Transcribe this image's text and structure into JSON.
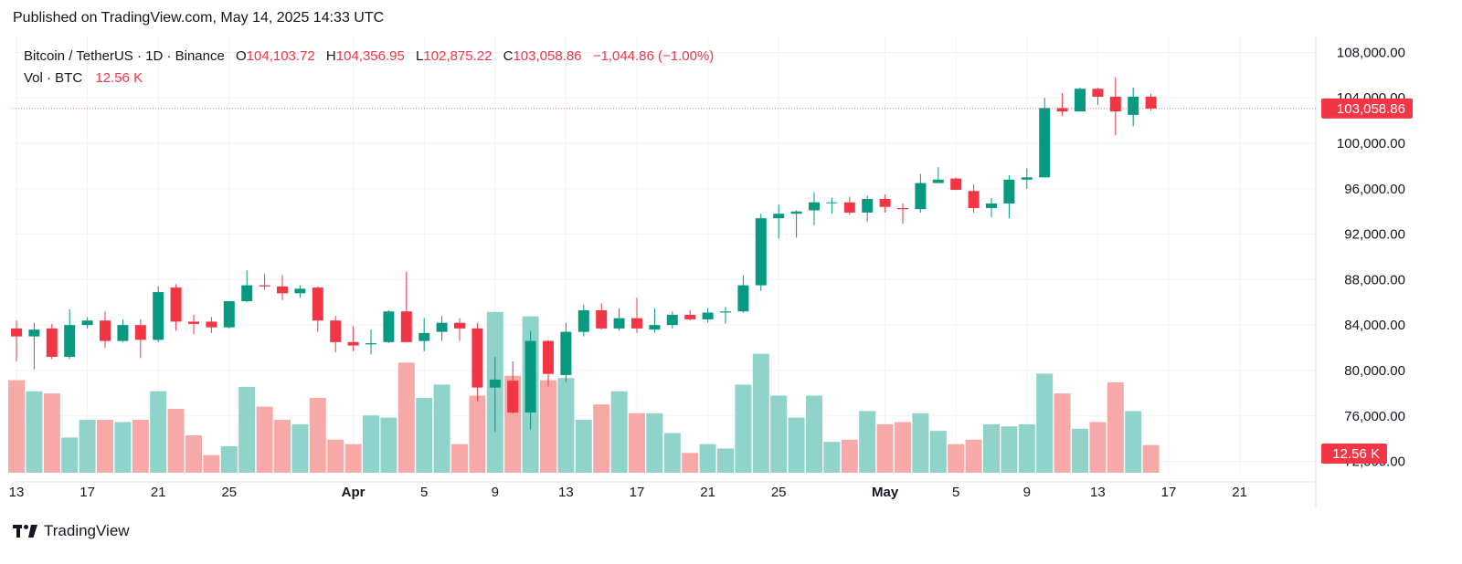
{
  "header": {
    "published": "Published on TradingView.com, May 14, 2025 14:33 UTC"
  },
  "legend": {
    "symbol": "Bitcoin / TetherUS · 1D · Binance",
    "o_label": "O",
    "o_value": "104,103.72",
    "h_label": "H",
    "h_value": "104,356.95",
    "l_label": "L",
    "l_value": "102,875.22",
    "c_label": "C",
    "c_value": "103,058.86",
    "change": "−1,044.86 (−1.00%)",
    "vol_label": "Vol · BTC",
    "vol_value": "12.56 K"
  },
  "footer": {
    "brand": "TradingView"
  },
  "colors": {
    "up": "#089981",
    "down": "#f23645",
    "vol_up": "#8fd3ca",
    "vol_down": "#f7a9a7",
    "grid": "#f0f3fa",
    "text": "#131722"
  },
  "chart_data": {
    "type": "candlestick",
    "title": "",
    "ylim": [
      71000,
      109400
    ],
    "y_ticks": [
      72000,
      76000,
      80000,
      84000,
      88000,
      92000,
      96000,
      100000,
      104000,
      108000
    ],
    "y_tick_labels": [
      "72,000.00",
      "76,000.00",
      "80,000.00",
      "84,000.00",
      "88,000.00",
      "92,000.00",
      "96,000.00",
      "100,000.00",
      "104,000.00",
      "108,000.00"
    ],
    "x_labels": [
      {
        "label": "13",
        "day": 0
      },
      {
        "label": "17",
        "day": 4
      },
      {
        "label": "21",
        "day": 8
      },
      {
        "label": "25",
        "day": 12
      },
      {
        "label": "Apr",
        "day": 19
      },
      {
        "label": "5",
        "day": 23
      },
      {
        "label": "9",
        "day": 27
      },
      {
        "label": "13",
        "day": 31
      },
      {
        "label": "17",
        "day": 35
      },
      {
        "label": "21",
        "day": 39
      },
      {
        "label": "25",
        "day": 43
      },
      {
        "label": "May",
        "day": 49
      },
      {
        "label": "5",
        "day": 53
      },
      {
        "label": "9",
        "day": 57
      },
      {
        "label": "13",
        "day": 61
      },
      {
        "label": "17",
        "day": 65
      },
      {
        "label": "21",
        "day": 69
      }
    ],
    "last_price": 103058.86,
    "last_price_label": "103,058.86",
    "last_volume_label": "12.56 K",
    "volume_max": 58000,
    "series": [
      {
        "date": "Mar 13",
        "o": 83700,
        "h": 84400,
        "l": 80800,
        "c": 83000,
        "v": 42000
      },
      {
        "date": "Mar 14",
        "o": 83000,
        "h": 84200,
        "l": 80100,
        "c": 83600,
        "v": 37000
      },
      {
        "date": "Mar 15",
        "o": 83700,
        "h": 84100,
        "l": 81000,
        "c": 81200,
        "v": 36000
      },
      {
        "date": "Mar 16",
        "o": 81200,
        "h": 85400,
        "l": 81000,
        "c": 84000,
        "v": 16000
      },
      {
        "date": "Mar 17",
        "o": 84000,
        "h": 84700,
        "l": 83700,
        "c": 84400,
        "v": 24000
      },
      {
        "date": "Mar 18",
        "o": 84400,
        "h": 85200,
        "l": 82000,
        "c": 82600,
        "v": 24000
      },
      {
        "date": "Mar 19",
        "o": 82600,
        "h": 84500,
        "l": 82500,
        "c": 84000,
        "v": 23000
      },
      {
        "date": "Mar 20",
        "o": 84000,
        "h": 84500,
        "l": 81100,
        "c": 82700,
        "v": 24000
      },
      {
        "date": "Mar 21",
        "o": 82700,
        "h": 87400,
        "l": 82500,
        "c": 86900,
        "v": 37000
      },
      {
        "date": "Mar 22",
        "o": 87300,
        "h": 87600,
        "l": 83500,
        "c": 84300,
        "v": 29000
      },
      {
        "date": "Mar 23",
        "o": 84300,
        "h": 84900,
        "l": 83200,
        "c": 84100,
        "v": 17000
      },
      {
        "date": "Mar 24",
        "o": 84300,
        "h": 84700,
        "l": 83300,
        "c": 83800,
        "v": 8000
      },
      {
        "date": "Mar 25",
        "o": 83800,
        "h": 86100,
        "l": 83700,
        "c": 86100,
        "v": 12000
      },
      {
        "date": "Mar 26",
        "o": 86100,
        "h": 88800,
        "l": 86000,
        "c": 87500,
        "v": 39000
      },
      {
        "date": "Mar 27",
        "o": 87500,
        "h": 88500,
        "l": 87100,
        "c": 87400,
        "v": 30000
      },
      {
        "date": "Mar 28",
        "o": 87400,
        "h": 88400,
        "l": 86200,
        "c": 86800,
        "v": 24000
      },
      {
        "date": "Mar 29",
        "o": 86800,
        "h": 87500,
        "l": 86400,
        "c": 87200,
        "v": 22000
      },
      {
        "date": "Mar 30",
        "o": 87300,
        "h": 87400,
        "l": 83400,
        "c": 84400,
        "v": 34000
      },
      {
        "date": "Mar 31",
        "o": 84400,
        "h": 84800,
        "l": 81600,
        "c": 82500,
        "v": 15000
      },
      {
        "date": "Apr 1",
        "o": 82500,
        "h": 83900,
        "l": 81700,
        "c": 82200,
        "v": 13000
      },
      {
        "date": "Apr 2",
        "o": 82300,
        "h": 83600,
        "l": 81400,
        "c": 82400,
        "v": 26000
      },
      {
        "date": "Apr 3",
        "o": 82500,
        "h": 85300,
        "l": 82400,
        "c": 85200,
        "v": 25000
      },
      {
        "date": "Apr 4",
        "o": 85200,
        "h": 88700,
        "l": 82500,
        "c": 82500,
        "v": 50000
      },
      {
        "date": "Apr 5",
        "o": 82600,
        "h": 84600,
        "l": 81700,
        "c": 83300,
        "v": 34000
      },
      {
        "date": "Apr 6",
        "o": 83400,
        "h": 84800,
        "l": 82600,
        "c": 84200,
        "v": 40000
      },
      {
        "date": "Apr 7",
        "o": 84200,
        "h": 84600,
        "l": 82600,
        "c": 83700,
        "v": 13000
      },
      {
        "date": "Apr 8",
        "o": 83700,
        "h": 84200,
        "l": 77300,
        "c": 78500,
        "v": 35000
      },
      {
        "date": "Apr 9",
        "o": 78500,
        "h": 81200,
        "l": 74600,
        "c": 79200,
        "v": 73000
      },
      {
        "date": "Apr 10",
        "o": 79100,
        "h": 80800,
        "l": 76200,
        "c": 76300,
        "v": 44000
      },
      {
        "date": "Apr 11",
        "o": 76300,
        "h": 83500,
        "l": 74800,
        "c": 82600,
        "v": 71000
      },
      {
        "date": "Apr 12",
        "o": 82600,
        "h": 82700,
        "l": 78600,
        "c": 79700,
        "v": 42000
      },
      {
        "date": "Apr 13",
        "o": 79600,
        "h": 84200,
        "l": 79000,
        "c": 83400,
        "v": 43000
      },
      {
        "date": "Apr 14",
        "o": 83400,
        "h": 85800,
        "l": 83000,
        "c": 85300,
        "v": 24000
      },
      {
        "date": "Apr 15",
        "o": 85300,
        "h": 85900,
        "l": 83600,
        "c": 83700,
        "v": 31000
      },
      {
        "date": "Apr 16",
        "o": 83700,
        "h": 85500,
        "l": 83500,
        "c": 84600,
        "v": 37000
      },
      {
        "date": "Apr 17",
        "o": 84600,
        "h": 86400,
        "l": 83300,
        "c": 83700,
        "v": 27000
      },
      {
        "date": "Apr 18",
        "o": 83600,
        "h": 85500,
        "l": 83300,
        "c": 84000,
        "v": 27000
      },
      {
        "date": "Apr 19",
        "o": 84000,
        "h": 85200,
        "l": 83700,
        "c": 84900,
        "v": 18000
      },
      {
        "date": "Apr 20",
        "o": 84900,
        "h": 85300,
        "l": 84400,
        "c": 84500,
        "v": 9000
      },
      {
        "date": "Apr 21",
        "o": 84500,
        "h": 85500,
        "l": 84200,
        "c": 85100,
        "v": 13000
      },
      {
        "date": "Apr 22",
        "o": 85100,
        "h": 85600,
        "l": 84100,
        "c": 85200,
        "v": 11000
      },
      {
        "date": "Apr 23",
        "o": 85200,
        "h": 88400,
        "l": 85100,
        "c": 87500,
        "v": 40000
      },
      {
        "date": "Apr 24",
        "o": 87500,
        "h": 93800,
        "l": 87000,
        "c": 93400,
        "v": 54000
      },
      {
        "date": "Apr 25",
        "o": 93400,
        "h": 94600,
        "l": 91600,
        "c": 93800,
        "v": 35000
      },
      {
        "date": "Apr 26",
        "o": 93800,
        "h": 94100,
        "l": 91700,
        "c": 94000,
        "v": 25000
      },
      {
        "date": "Apr 27",
        "o": 94100,
        "h": 95700,
        "l": 92800,
        "c": 94800,
        "v": 35000
      },
      {
        "date": "Apr 28",
        "o": 94800,
        "h": 95200,
        "l": 93800,
        "c": 94800,
        "v": 14000
      },
      {
        "date": "Apr 29",
        "o": 94800,
        "h": 95300,
        "l": 93700,
        "c": 93900,
        "v": 15000
      },
      {
        "date": "Apr 30",
        "o": 93900,
        "h": 95400,
        "l": 93100,
        "c": 95100,
        "v": 28000
      },
      {
        "date": "May 1",
        "o": 95100,
        "h": 95500,
        "l": 93900,
        "c": 94400,
        "v": 22000
      },
      {
        "date": "May 2",
        "o": 94300,
        "h": 94700,
        "l": 92900,
        "c": 94200,
        "v": 23000
      },
      {
        "date": "May 3",
        "o": 94200,
        "h": 97300,
        "l": 93900,
        "c": 96500,
        "v": 27000
      },
      {
        "date": "May 4",
        "o": 96500,
        "h": 97900,
        "l": 96500,
        "c": 96800,
        "v": 19000
      },
      {
        "date": "May 5",
        "o": 96900,
        "h": 97000,
        "l": 96200,
        "c": 95900,
        "v": 13000
      },
      {
        "date": "May 6",
        "o": 95800,
        "h": 96400,
        "l": 93900,
        "c": 94300,
        "v": 15000
      },
      {
        "date": "May 7",
        "o": 94300,
        "h": 95200,
        "l": 93500,
        "c": 94700,
        "v": 22000
      },
      {
        "date": "May 8",
        "o": 94700,
        "h": 97200,
        "l": 93400,
        "c": 96800,
        "v": 21000
      },
      {
        "date": "May 9",
        "o": 96800,
        "h": 97800,
        "l": 96000,
        "c": 97000,
        "v": 22000
      },
      {
        "date": "May 10",
        "o": 97000,
        "h": 104000,
        "l": 97000,
        "c": 103100,
        "v": 45000
      },
      {
        "date": "May 11",
        "o": 103100,
        "h": 104400,
        "l": 102400,
        "c": 102800,
        "v": 36000
      },
      {
        "date": "May 12",
        "o": 102800,
        "h": 104900,
        "l": 102800,
        "c": 104800,
        "v": 20000
      },
      {
        "date": "May 13",
        "o": 104800,
        "h": 104900,
        "l": 103400,
        "c": 104100,
        "v": 23000
      },
      {
        "date": "May 14",
        "o": 104100,
        "h": 105800,
        "l": 100700,
        "c": 102800,
        "v": 41000
      },
      {
        "date": "May 15",
        "o": 102500,
        "h": 104900,
        "l": 101500,
        "c": 104100,
        "v": 28000
      },
      {
        "date": "May 16",
        "o": 104103.72,
        "h": 104356.95,
        "l": 102875.22,
        "c": 103058.86,
        "v": 12560
      }
    ]
  }
}
